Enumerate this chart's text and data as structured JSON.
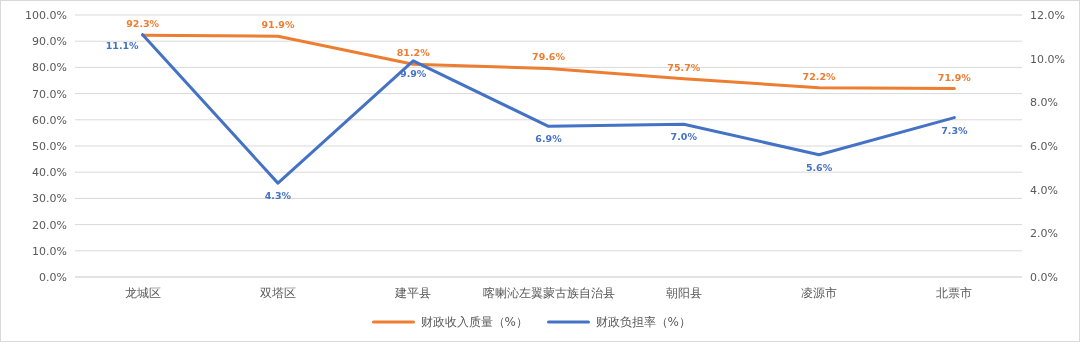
{
  "chart_data": {
    "type": "line",
    "categories": [
      "龙城区",
      "双塔区",
      "建平县",
      "喀喇沁左翼蒙古族自治县",
      "朝阳县",
      "凌源市",
      "北票市"
    ],
    "series": [
      {
        "name": "财政收入质量（%）",
        "color": "#ed7d31",
        "values": [
          92.3,
          91.9,
          81.2,
          79.6,
          75.7,
          72.2,
          71.9
        ],
        "value_labels": [
          "92.3%",
          "91.9%",
          "81.2%",
          "79.6%",
          "75.7%",
          "72.2%",
          "71.9%"
        ]
      },
      {
        "name": "财政负担率（%）",
        "color": "#4472c4",
        "axis": "y2",
        "values": [
          11.1,
          4.3,
          9.9,
          6.9,
          7.0,
          5.6,
          7.3
        ],
        "value_labels": [
          "11.1%",
          "4.3%",
          "9.9%",
          "6.9%",
          "7.0%",
          "5.6%",
          "7.3%"
        ]
      }
    ],
    "ylim": [
      0,
      100
    ],
    "yticks": [
      {
        "value": 0,
        "label": "0.0%"
      },
      {
        "value": 10,
        "label": "10.0%"
      },
      {
        "value": 20,
        "label": "20.0%"
      },
      {
        "value": 30,
        "label": "30.0%"
      },
      {
        "value": 40,
        "label": "40.0%"
      },
      {
        "value": 50,
        "label": "50.0%"
      },
      {
        "value": 60,
        "label": "60.0%"
      },
      {
        "value": 70,
        "label": "70.0%"
      },
      {
        "value": 80,
        "label": "80.0%"
      },
      {
        "value": 90,
        "label": "90.0%"
      },
      {
        "value": 100,
        "label": "100.0%"
      }
    ],
    "y2lim": [
      0,
      12
    ],
    "y2ticks": [
      {
        "value": 0,
        "label": "0.0%"
      },
      {
        "value": 2,
        "label": "2.0%"
      },
      {
        "value": 4,
        "label": "4.0%"
      },
      {
        "value": 6,
        "label": "6.0%"
      },
      {
        "value": 8,
        "label": "8.0%"
      },
      {
        "value": 10,
        "label": "10.0%"
      },
      {
        "value": 12,
        "label": "12.0%"
      }
    ],
    "grid": "y",
    "legend": "bottom",
    "marker": "none",
    "line_style": "solid"
  }
}
